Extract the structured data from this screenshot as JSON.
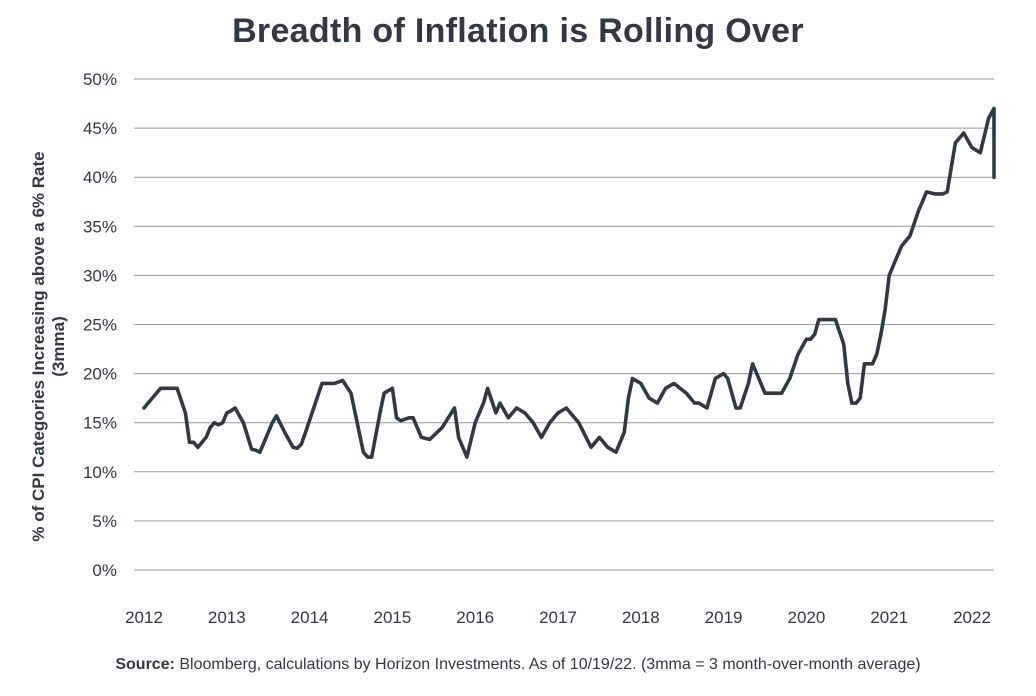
{
  "chart_data": {
    "type": "line",
    "title": "Breadth of Inflation is Rolling Over",
    "ylabel_line1": "% of CPI Categories Increasing above a 6% Rate",
    "ylabel_line2": "(3mma)",
    "xlabel": "",
    "ylim": [
      0,
      50
    ],
    "y_ticks": [
      0,
      5,
      10,
      15,
      20,
      25,
      30,
      35,
      40,
      45,
      50
    ],
    "y_tick_labels": [
      "0%",
      "5%",
      "10%",
      "15%",
      "20%",
      "25%",
      "30%",
      "35%",
      "40%",
      "45%",
      "50%"
    ],
    "x_tick_labels": [
      "2012",
      "2013",
      "2014",
      "2015",
      "2016",
      "2017",
      "2018",
      "2019",
      "2020",
      "2021",
      "2022"
    ],
    "xlim": [
      2012.0,
      2022.6
    ],
    "grid": true,
    "line_color": "#2f3a44",
    "grid_color": "#9a9a9a",
    "series": [
      {
        "x": [
          2012.0,
          2012.1,
          2012.2,
          2012.3,
          2012.4,
          2012.5,
          2012.55,
          2012.6,
          2012.65,
          2012.7,
          2012.75,
          2012.8,
          2012.85,
          2012.9,
          2012.95,
          2013.0,
          2013.05,
          2013.1,
          2013.2,
          2013.3,
          2013.35,
          2013.4,
          2013.5,
          2013.55,
          2013.6,
          2013.7,
          2013.8,
          2013.85,
          2013.9,
          2013.95,
          2014.05,
          2014.15,
          2014.25,
          2014.3,
          2014.4,
          2014.5,
          2014.55,
          2014.65,
          2014.7,
          2014.75,
          2014.85,
          2014.9,
          2015.0,
          2015.05,
          2015.1,
          2015.2,
          2015.25,
          2015.3,
          2015.35,
          2015.45,
          2015.6,
          2015.75,
          2015.8,
          2015.9,
          2016.0,
          2016.05,
          2016.1,
          2016.15,
          2016.25,
          2016.3,
          2016.4,
          2016.5,
          2016.6,
          2016.7,
          2016.8,
          2016.9,
          2017.0,
          2017.1,
          2017.25,
          2017.4,
          2017.5,
          2017.6,
          2017.7,
          2017.8,
          2017.85,
          2017.9,
          2018.0,
          2018.1,
          2018.2,
          2018.3,
          2018.4,
          2018.55,
          2018.65,
          2018.7,
          2018.8,
          2018.9,
          2019.0,
          2019.05,
          2019.15,
          2019.2,
          2019.3,
          2019.35,
          2019.5,
          2019.6,
          2019.7,
          2019.8,
          2019.9,
          2020.0,
          2020.05,
          2020.1,
          2020.15,
          2020.25,
          2020.35,
          2020.45,
          2020.5,
          2020.55,
          2020.6,
          2020.65,
          2020.7,
          2020.75,
          2020.8,
          2020.85,
          2020.9,
          2020.95,
          2021.0,
          2021.05,
          2021.15,
          2021.25,
          2021.35,
          2021.45,
          2021.55,
          2021.65,
          2021.7,
          2021.8,
          2021.9,
          2022.0,
          2022.1,
          2022.2,
          2022.3,
          2022.4,
          2022.45,
          2022.5,
          2022.55
        ],
        "y": [
          16.5,
          17.5,
          18.5,
          18.5,
          18.5,
          16.0,
          13.0,
          13.0,
          12.5,
          13.0,
          13.5,
          14.5,
          15.0,
          14.8,
          15.0,
          16.0,
          16.2,
          16.5,
          15.0,
          12.3,
          12.2,
          12.0,
          14.0,
          15.0,
          15.7,
          14.0,
          12.5,
          12.4,
          12.8,
          14.0,
          16.5,
          19.0,
          19.0,
          19.0,
          19.3,
          18.0,
          16.0,
          12.0,
          11.5,
          11.5,
          16.0,
          18.0,
          18.5,
          15.5,
          15.2,
          15.5,
          15.5,
          14.5,
          13.5,
          13.3,
          14.5,
          16.5,
          13.5,
          11.5,
          15.0,
          16.0,
          17.0,
          18.5,
          16.0,
          17.0,
          15.5,
          16.5,
          16.0,
          15.0,
          13.5,
          15.0,
          16.0,
          16.5,
          15.0,
          12.5,
          13.5,
          12.5,
          12.0,
          14.0,
          17.5,
          19.5,
          19.0,
          17.5,
          17.0,
          18.5,
          19.0,
          18.0,
          17.0,
          17.0,
          16.5,
          19.5,
          20.0,
          19.5,
          16.5,
          16.5,
          19.0,
          21.0,
          18.0,
          18.0,
          18.0,
          19.5,
          22.0,
          23.5,
          23.5,
          24.0,
          25.5,
          25.5,
          25.5,
          23.0,
          19.0,
          17.0,
          17.0,
          17.5,
          21.0,
          21.0,
          21.0,
          22.0,
          24.0,
          26.5,
          30.0,
          31.0,
          33.0,
          34.0,
          36.5,
          38.5,
          38.3,
          38.3,
          38.5,
          43.5,
          44.5,
          43.0,
          42.5,
          46.0,
          47.0,
          46.3,
          44.0,
          40.0,
          40.0
        ]
      }
    ]
  },
  "source_label": "Source:",
  "source_text": " Bloomberg, calculations by Horizon Investments. As of 10/19/22. (3mma = 3 month-over-month average)"
}
